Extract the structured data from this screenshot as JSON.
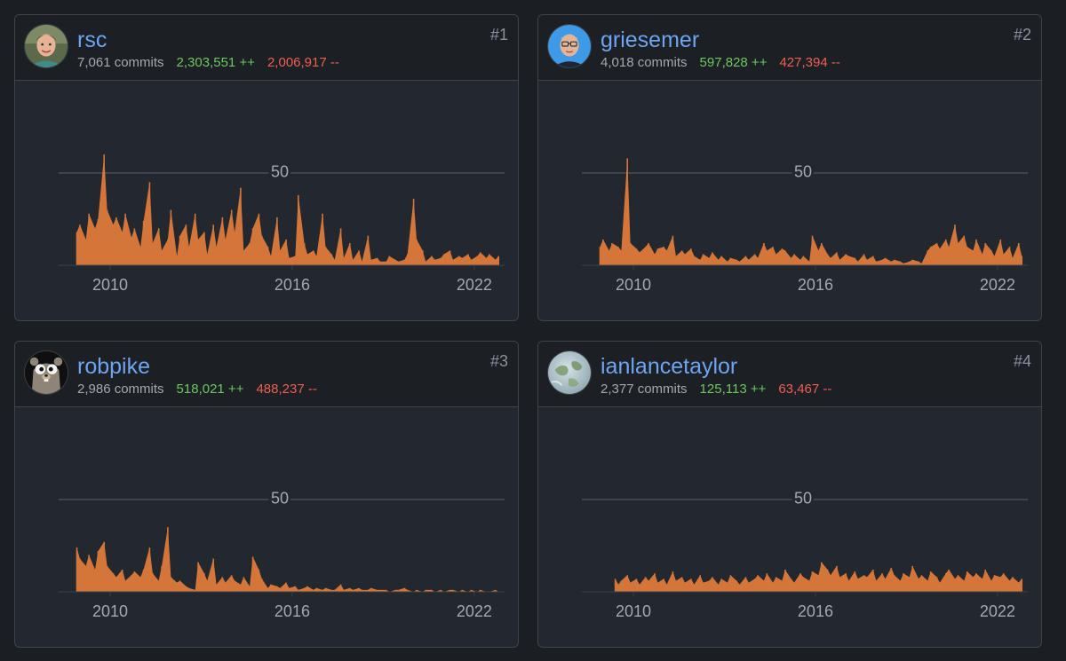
{
  "colors": {
    "background": "#1b1e23",
    "card": "#23272e",
    "header": "#1c1f24",
    "username": "#6ea4f0",
    "additions": "#6fc661",
    "deletions": "#ee5f52",
    "bar": "#d4763a",
    "gridline": "#5b6068",
    "tick": "#a3a9b2"
  },
  "contributors": [
    {
      "rank": "#1",
      "username": "rsc",
      "commits": "7,061 commits",
      "additions": "2,303,551 ++",
      "deletions": "2,006,917 --",
      "avatar": "avatar-photo-rsc",
      "chart_data": {
        "type": "area",
        "x": [
          2008.9,
          2009.0,
          2009.2,
          2009.3,
          2009.5,
          2009.6,
          2009.8,
          2009.9,
          2010.1,
          2010.2,
          2010.4,
          2010.5,
          2010.7,
          2010.8,
          2011.0,
          2011.1,
          2011.3,
          2011.4,
          2011.6,
          2011.7,
          2011.9,
          2012.0,
          2012.2,
          2012.3,
          2012.5,
          2012.6,
          2012.8,
          2012.9,
          2013.1,
          2013.2,
          2013.4,
          2013.5,
          2013.7,
          2013.8,
          2014.0,
          2014.1,
          2014.3,
          2014.4,
          2014.6,
          2014.7,
          2014.9,
          2015.0,
          2015.2,
          2015.3,
          2015.5,
          2015.6,
          2015.8,
          2015.9,
          2016.1,
          2016.2,
          2016.4,
          2016.5,
          2016.7,
          2016.8,
          2017.0,
          2017.1,
          2017.3,
          2017.4,
          2017.6,
          2017.7,
          2017.9,
          2018.0,
          2018.2,
          2018.3,
          2018.5,
          2018.6,
          2018.8,
          2018.9,
          2019.1,
          2019.2,
          2019.4,
          2019.5,
          2019.7,
          2019.8,
          2020.0,
          2020.1,
          2020.3,
          2020.4,
          2020.6,
          2020.7,
          2020.9,
          2021.0,
          2021.2,
          2021.3,
          2021.5,
          2021.6,
          2021.8,
          2021.9,
          2022.1,
          2022.2,
          2022.4,
          2022.5,
          2022.7,
          2022.8
        ],
        "values": [
          18,
          22,
          14,
          28,
          20,
          25,
          60,
          30,
          22,
          26,
          18,
          28,
          15,
          20,
          10,
          24,
          45,
          12,
          20,
          8,
          14,
          30,
          5,
          16,
          22,
          10,
          28,
          14,
          18,
          6,
          22,
          10,
          26,
          14,
          30,
          18,
          42,
          8,
          12,
          20,
          28,
          16,
          10,
          5,
          26,
          8,
          14,
          4,
          5,
          38,
          12,
          6,
          8,
          5,
          28,
          10,
          6,
          3,
          20,
          4,
          12,
          3,
          8,
          2,
          16,
          3,
          4,
          2,
          2,
          5,
          3,
          2,
          3,
          6,
          36,
          14,
          8,
          2,
          5,
          3,
          4,
          6,
          8,
          3,
          5,
          4,
          6,
          3,
          5,
          7,
          4,
          6,
          3,
          5
        ],
        "xticks": [
          "2010",
          "2016",
          "2022"
        ],
        "gridline_value": "50",
        "ylim": [
          0,
          60
        ]
      }
    },
    {
      "rank": "#2",
      "username": "griesemer",
      "commits": "4,018 commits",
      "additions": "597,828 ++",
      "deletions": "427,394 --",
      "avatar": "avatar-photo-griesemer",
      "chart_data": {
        "type": "area",
        "x": [
          2008.9,
          2009.0,
          2009.2,
          2009.3,
          2009.5,
          2009.6,
          2009.8,
          2009.9,
          2010.1,
          2010.2,
          2010.4,
          2010.5,
          2010.7,
          2010.8,
          2011.0,
          2011.1,
          2011.3,
          2011.4,
          2011.6,
          2011.7,
          2011.9,
          2012.0,
          2012.2,
          2012.3,
          2012.5,
          2012.6,
          2012.8,
          2012.9,
          2013.1,
          2013.2,
          2013.4,
          2013.5,
          2013.7,
          2013.8,
          2014.0,
          2014.1,
          2014.3,
          2014.4,
          2014.6,
          2014.7,
          2014.9,
          2015.0,
          2015.2,
          2015.3,
          2015.5,
          2015.6,
          2015.8,
          2015.9,
          2016.1,
          2016.2,
          2016.4,
          2016.5,
          2016.7,
          2016.8,
          2017.0,
          2017.1,
          2017.3,
          2017.4,
          2017.6,
          2017.7,
          2017.9,
          2018.0,
          2018.2,
          2018.3,
          2018.5,
          2018.6,
          2018.8,
          2018.9,
          2019.1,
          2019.2,
          2019.4,
          2019.5,
          2019.7,
          2019.8,
          2020.0,
          2020.1,
          2020.3,
          2020.4,
          2020.6,
          2020.7,
          2020.9,
          2021.0,
          2021.2,
          2021.3,
          2021.5,
          2021.6,
          2021.8,
          2021.9,
          2022.1,
          2022.2,
          2022.4,
          2022.5,
          2022.7,
          2022.8
        ],
        "values": [
          10,
          14,
          8,
          12,
          10,
          8,
          58,
          12,
          9,
          7,
          10,
          12,
          6,
          9,
          10,
          8,
          16,
          5,
          8,
          6,
          9,
          5,
          3,
          6,
          4,
          7,
          3,
          5,
          2,
          4,
          3,
          2,
          5,
          3,
          6,
          4,
          12,
          8,
          10,
          6,
          9,
          8,
          4,
          6,
          3,
          5,
          2,
          16,
          8,
          12,
          6,
          4,
          7,
          3,
          6,
          5,
          4,
          2,
          6,
          3,
          5,
          2,
          3,
          4,
          2,
          3,
          2,
          1,
          2,
          3,
          2,
          1,
          8,
          10,
          12,
          9,
          14,
          10,
          22,
          12,
          16,
          10,
          8,
          14,
          6,
          12,
          8,
          5,
          14,
          6,
          10,
          4,
          12,
          5
        ],
        "xticks": [
          "2010",
          "2016",
          "2022"
        ],
        "gridline_value": "50",
        "ylim": [
          0,
          60
        ]
      }
    },
    {
      "rank": "#3",
      "username": "robpike",
      "commits": "2,986 commits",
      "additions": "518,021 ++",
      "deletions": "488,237 --",
      "avatar": "avatar-gopher-robpike",
      "chart_data": {
        "type": "area",
        "x": [
          2008.9,
          2009.0,
          2009.2,
          2009.3,
          2009.5,
          2009.6,
          2009.8,
          2009.9,
          2010.1,
          2010.2,
          2010.4,
          2010.5,
          2010.7,
          2010.8,
          2011.0,
          2011.1,
          2011.3,
          2011.4,
          2011.6,
          2011.7,
          2011.9,
          2012.0,
          2012.2,
          2012.3,
          2012.5,
          2012.6,
          2012.8,
          2012.9,
          2013.1,
          2013.2,
          2013.4,
          2013.5,
          2013.7,
          2013.8,
          2014.0,
          2014.1,
          2014.3,
          2014.4,
          2014.6,
          2014.7,
          2014.9,
          2015.0,
          2015.2,
          2015.3,
          2015.5,
          2015.6,
          2015.8,
          2015.9,
          2016.1,
          2016.2,
          2016.4,
          2016.5,
          2016.7,
          2016.8,
          2017.0,
          2017.1,
          2017.3,
          2017.4,
          2017.6,
          2017.7,
          2017.9,
          2018.0,
          2018.2,
          2018.3,
          2018.5,
          2018.6,
          2018.8,
          2018.9,
          2019.1,
          2019.2,
          2019.4,
          2019.5,
          2019.7,
          2019.8,
          2020.0,
          2020.1,
          2020.3,
          2020.4,
          2020.6,
          2020.7,
          2020.9,
          2021.0,
          2021.2,
          2021.3,
          2021.5,
          2021.6,
          2021.8,
          2021.9,
          2022.1,
          2022.2,
          2022.4,
          2022.5,
          2022.7,
          2022.8
        ],
        "values": [
          24,
          18,
          14,
          20,
          12,
          22,
          27,
          14,
          10,
          8,
          12,
          6,
          9,
          11,
          8,
          12,
          24,
          10,
          6,
          14,
          35,
          8,
          5,
          6,
          3,
          2,
          1,
          16,
          10,
          6,
          18,
          4,
          8,
          5,
          9,
          6,
          4,
          8,
          3,
          19,
          12,
          7,
          2,
          4,
          3,
          2,
          5,
          2,
          3,
          1,
          2,
          3,
          1,
          2,
          1,
          2,
          1,
          1,
          4,
          1,
          2,
          1,
          2,
          1,
          1,
          2,
          1,
          1,
          1,
          0,
          1,
          1,
          2,
          1,
          0,
          1,
          0,
          1,
          1,
          0,
          1,
          0,
          1,
          1,
          0,
          1,
          0,
          1,
          0,
          1,
          0,
          0,
          1,
          0
        ],
        "xticks": [
          "2010",
          "2016",
          "2022"
        ],
        "gridline_value": "50",
        "ylim": [
          0,
          60
        ]
      }
    },
    {
      "rank": "#4",
      "username": "ianlancetaylor",
      "commits": "2,377 commits",
      "additions": "125,113 ++",
      "deletions": "63,467 --",
      "avatar": "avatar-globe-ianlancetaylor",
      "chart_data": {
        "type": "area",
        "x": [
          2009.4,
          2009.5,
          2009.6,
          2009.8,
          2009.9,
          2010.1,
          2010.2,
          2010.4,
          2010.5,
          2010.7,
          2010.8,
          2011.0,
          2011.1,
          2011.3,
          2011.4,
          2011.6,
          2011.7,
          2011.9,
          2012.0,
          2012.2,
          2012.3,
          2012.5,
          2012.6,
          2012.8,
          2012.9,
          2013.1,
          2013.2,
          2013.4,
          2013.5,
          2013.7,
          2013.8,
          2014.0,
          2014.1,
          2014.3,
          2014.4,
          2014.6,
          2014.7,
          2014.9,
          2015.0,
          2015.2,
          2015.3,
          2015.5,
          2015.6,
          2015.8,
          2015.9,
          2016.1,
          2016.2,
          2016.4,
          2016.5,
          2016.7,
          2016.8,
          2017.0,
          2017.1,
          2017.3,
          2017.4,
          2017.6,
          2017.7,
          2017.9,
          2018.0,
          2018.2,
          2018.3,
          2018.5,
          2018.6,
          2018.8,
          2018.9,
          2019.1,
          2019.2,
          2019.4,
          2019.5,
          2019.7,
          2019.8,
          2020.0,
          2020.1,
          2020.3,
          2020.4,
          2020.6,
          2020.7,
          2020.9,
          2021.0,
          2021.2,
          2021.3,
          2021.5,
          2021.6,
          2021.8,
          2021.9,
          2022.1,
          2022.2,
          2022.4,
          2022.5,
          2022.7,
          2022.8
        ],
        "values": [
          7,
          4,
          6,
          9,
          5,
          7,
          4,
          8,
          6,
          10,
          5,
          7,
          4,
          11,
          6,
          8,
          5,
          7,
          4,
          9,
          5,
          6,
          8,
          4,
          7,
          5,
          9,
          6,
          4,
          8,
          5,
          7,
          9,
          6,
          10,
          5,
          8,
          6,
          12,
          7,
          5,
          10,
          8,
          6,
          11,
          9,
          16,
          12,
          9,
          14,
          8,
          10,
          6,
          11,
          7,
          9,
          8,
          12,
          6,
          10,
          7,
          13,
          9,
          6,
          10,
          8,
          14,
          7,
          9,
          6,
          11,
          8,
          5,
          10,
          12,
          7,
          9,
          6,
          11,
          8,
          10,
          7,
          12,
          6,
          9,
          8,
          10,
          6,
          8,
          5,
          7
        ],
        "xticks": [
          "2010",
          "2016",
          "2022"
        ],
        "gridline_value": "50",
        "ylim": [
          0,
          60
        ]
      }
    }
  ]
}
